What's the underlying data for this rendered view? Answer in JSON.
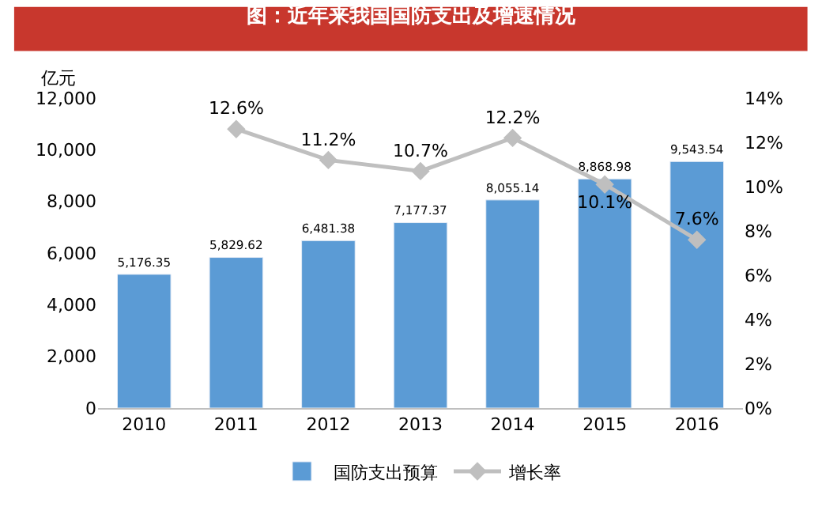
{
  "chart_data": {
    "type": "bar",
    "title": "图：近年来我国国防支出及增速情况",
    "ylabel": "亿元",
    "categories": [
      "2010",
      "2011",
      "2012",
      "2013",
      "2014",
      "2015",
      "2016"
    ],
    "series": [
      {
        "name": "国防支出预算",
        "color": "#5b9bd5",
        "values": [
          5176.35,
          5829.62,
          6481.38,
          7177.37,
          8055.14,
          8868.98,
          9543.54
        ],
        "value_labels": [
          "5,176.35",
          "5,829.62",
          "6,481.38",
          "7,177.37",
          "8,055.14",
          "8,868.98",
          "9,543.54"
        ]
      },
      {
        "name": "增长率",
        "type": "line",
        "axis": "y2",
        "color": "#bfbfbf",
        "marker": "diamond",
        "values": [
          null,
          12.6,
          11.2,
          10.7,
          12.2,
          10.1,
          7.6
        ],
        "value_labels": [
          null,
          "12.6%",
          "11.2%",
          "10.7%",
          "12.2%",
          "10.1%",
          "7.6%"
        ]
      }
    ],
    "ylim": [
      0,
      12000
    ],
    "yticks": [
      0,
      {
        "value": 2000,
        "label": "2,000"
      },
      {
        "value": 4000,
        "label": "4,000"
      },
      {
        "value": 6000,
        "label": "6,000"
      },
      {
        "value": 8000,
        "label": "8,000"
      },
      {
        "value": 10000,
        "label": "10,000"
      },
      {
        "value": 12000,
        "label": "12,000"
      }
    ],
    "y2lim": [
      0,
      14
    ],
    "y2ticks": [
      {
        "value": 0,
        "label": "0%"
      },
      {
        "value": 2,
        "label": "2%"
      },
      {
        "value": 4,
        "label": "4%"
      },
      {
        "value": 6,
        "label": "6%"
      },
      {
        "value": 8,
        "label": "8%"
      },
      {
        "value": 10,
        "label": "10%"
      },
      {
        "value": 12,
        "label": "12%"
      },
      {
        "value": 14,
        "label": "14%"
      }
    ],
    "legend": "bottom"
  }
}
